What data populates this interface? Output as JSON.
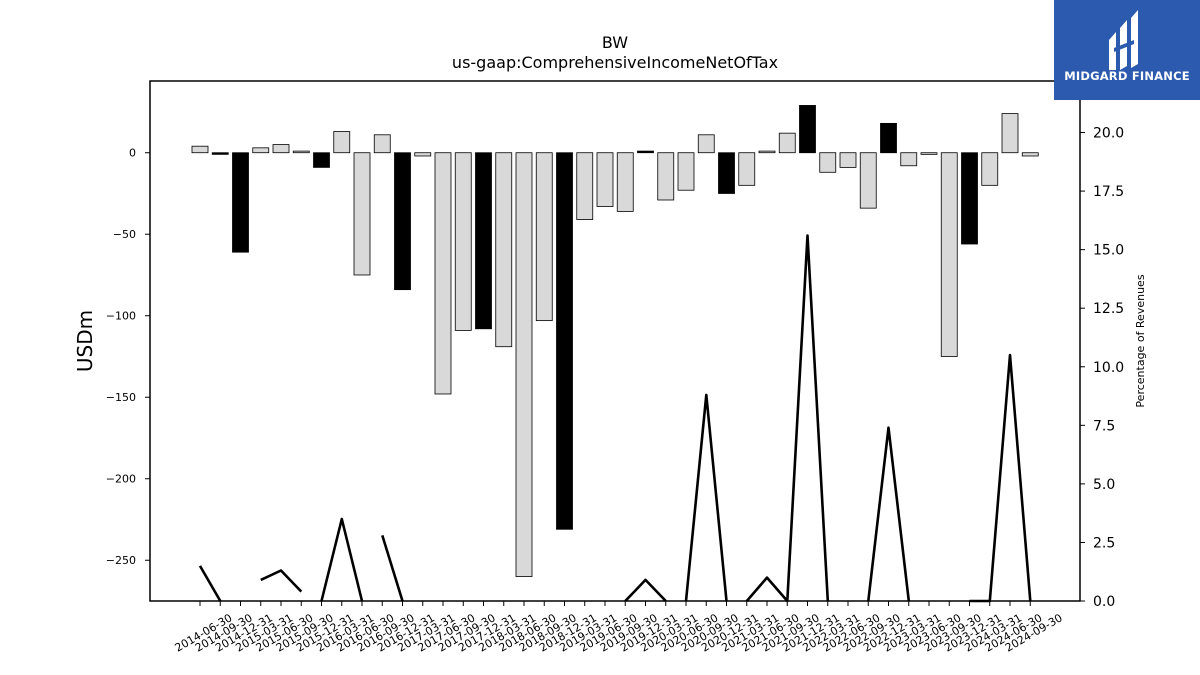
{
  "chart_data": {
    "type": "bar",
    "title": "BW",
    "subtitle": "us-gaap:ComprehensiveIncomeNetOfTax",
    "ylabel": "USDm",
    "y2label": "Percentage of Revenues",
    "ylim": [
      -275,
      44
    ],
    "y2lim": [
      0,
      22.2
    ],
    "yticks": [
      0,
      -50,
      -100,
      -150,
      -200,
      -250
    ],
    "y2ticks": [
      0.0,
      2.5,
      5.0,
      7.5,
      10.0,
      12.5,
      15.0,
      17.5,
      20.0
    ],
    "categories": [
      "2014-06-30",
      "2014-09-30",
      "2014-12-31",
      "2015-03-31",
      "2015-06-30",
      "2015-09-30",
      "2015-12-31",
      "2016-03-31",
      "2016-06-30",
      "2016-09-30",
      "2016-12-31",
      "2017-03-31",
      "2017-06-30",
      "2017-09-30",
      "2017-12-31",
      "2018-03-31",
      "2018-06-30",
      "2018-09-30",
      "2018-12-31",
      "2019-03-31",
      "2019-06-30",
      "2019-09-30",
      "2019-12-31",
      "2020-03-31",
      "2020-06-30",
      "2020-09-30",
      "2020-12-31",
      "2021-03-31",
      "2021-06-30",
      "2021-09-30",
      "2021-12-31",
      "2022-03-31",
      "2022-06-30",
      "2022-09-30",
      "2022-12-31",
      "2023-03-31",
      "2023-06-30",
      "2023-09-30",
      "2023-12-31",
      "2024-03-31",
      "2024-06-30",
      "2024-09-30"
    ],
    "series": [
      {
        "type": "bar",
        "values": [
          4,
          -1,
          -61,
          3,
          5,
          1,
          -9,
          13,
          -75,
          11,
          -84,
          -2,
          -148,
          -109,
          -108,
          -119,
          -260,
          -103,
          -231,
          -41,
          -33,
          -36,
          1,
          -29,
          -23,
          11,
          -25,
          -20,
          1,
          12,
          29,
          -12,
          -9,
          -34,
          18,
          -8,
          -1,
          -125,
          -56,
          -20,
          24,
          -2
        ],
        "colors": [
          "light",
          "black",
          "black",
          "light",
          "light",
          "light",
          "black",
          "light",
          "light",
          "light",
          "black",
          "light",
          "light",
          "light",
          "black",
          "light",
          "light",
          "light",
          "black",
          "light",
          "light",
          "light",
          "black",
          "light",
          "light",
          "light",
          "black",
          "light",
          "light",
          "light",
          "black",
          "light",
          "light",
          "light",
          "black",
          "light",
          "light",
          "light",
          "black",
          "light",
          "light",
          "light"
        ]
      },
      {
        "type": "line",
        "values": [
          1.5,
          0.0,
          null,
          0.9,
          1.3,
          0.4,
          null,
          3.5,
          null,
          2.8,
          null,
          null,
          null,
          null,
          null,
          null,
          null,
          null,
          null,
          null,
          null,
          null,
          0.9,
          null,
          null,
          8.8,
          null,
          null,
          1.0,
          null,
          15.6,
          null,
          null,
          null,
          7.4,
          null,
          null,
          null,
          null,
          0.0,
          10.5,
          0.0
        ],
        "segments": [
          [
            0,
            1
          ],
          [
            3,
            5
          ],
          [
            6,
            8
          ],
          [
            9,
            10
          ],
          [
            21,
            23
          ],
          [
            24,
            26
          ],
          [
            27,
            31
          ],
          [
            33,
            35
          ],
          [
            38,
            41
          ]
        ]
      }
    ],
    "colors": {
      "light": "#d9d9d9",
      "black": "#000000",
      "edge": "#000000"
    }
  },
  "logo": {
    "brand": "MIDGARD FINANCE",
    "background": "#2b5aae"
  }
}
